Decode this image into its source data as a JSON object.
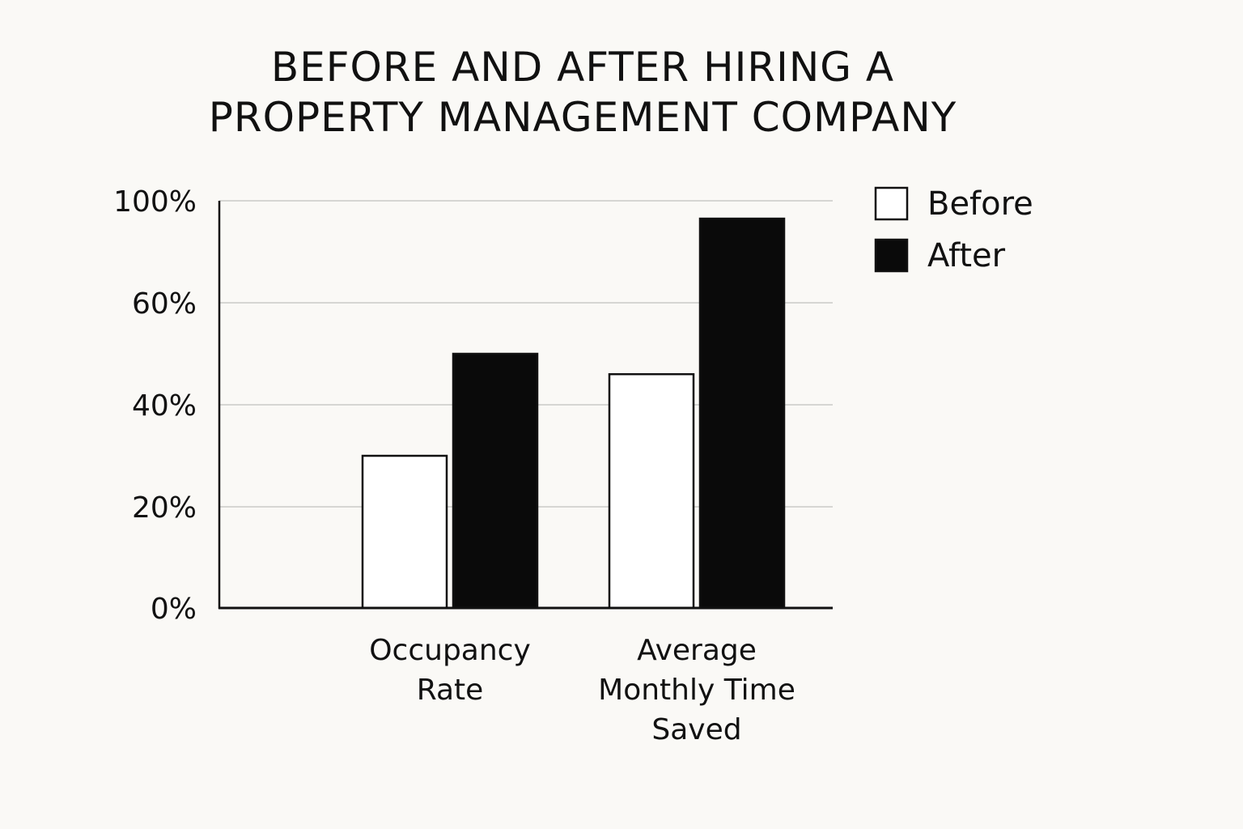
{
  "chart_data": {
    "type": "bar",
    "title": [
      "BEFORE AND AFTER HIRING A",
      "PROPERTY MANAGEMENT COMPANY"
    ],
    "categories": [
      [
        "Occupancy",
        "Rate"
      ],
      [
        "Average",
        "Monthly Time",
        "Saved"
      ]
    ],
    "series": [
      {
        "name": "Before",
        "values": [
          30,
          46
        ],
        "color": "#ffffff"
      },
      {
        "name": "After",
        "values": [
          50,
          93
        ],
        "color": "#0a0a0a"
      }
    ],
    "yticks": [
      {
        "value": 0,
        "label": "0%"
      },
      {
        "value": 20,
        "label": "20%"
      },
      {
        "value": 40,
        "label": "40%"
      },
      {
        "value": 60,
        "label": "60%"
      },
      {
        "value": 100,
        "label": "100%"
      }
    ],
    "xlabel": "",
    "ylabel": "",
    "grid": true,
    "legend_position": "top-right",
    "colors": {
      "gridline": "#d6d6d3",
      "axis": "#111111",
      "bar_stroke": "#111111"
    }
  }
}
